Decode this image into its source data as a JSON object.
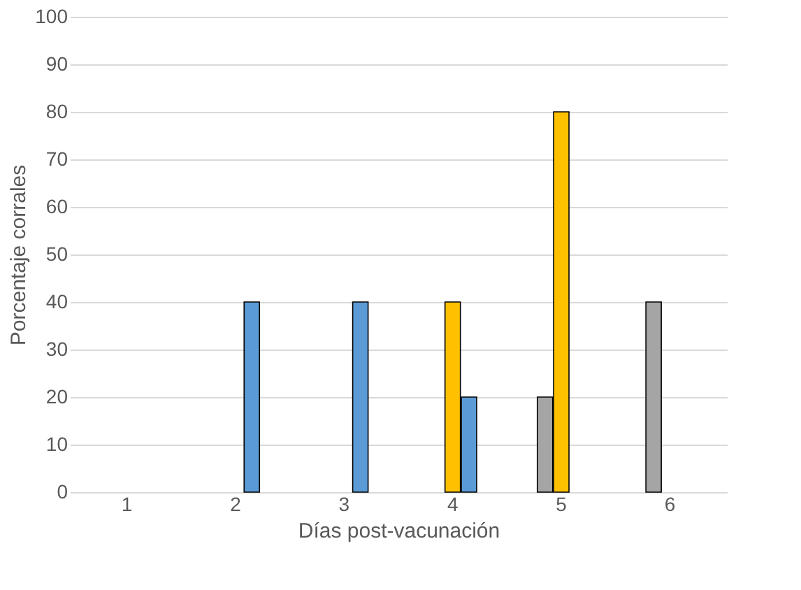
{
  "chart_data": {
    "type": "bar",
    "xlabel": "Días post-vacunación",
    "ylabel": "Porcentaje  corrales",
    "categories": [
      "1",
      "2",
      "3",
      "4",
      "5",
      "6"
    ],
    "series": [
      {
        "color": "#a5a5a5",
        "values": [
          null,
          null,
          null,
          null,
          20,
          40
        ]
      },
      {
        "color": "#ffc000",
        "values": [
          null,
          null,
          null,
          40,
          80,
          null
        ]
      },
      {
        "color": "#5b9bd5",
        "values": [
          null,
          40,
          40,
          20,
          null,
          null
        ]
      }
    ],
    "ylim": [
      0,
      100
    ],
    "yticks": [
      0,
      10,
      20,
      30,
      40,
      50,
      60,
      70,
      80,
      90,
      100
    ],
    "grid": "y"
  }
}
